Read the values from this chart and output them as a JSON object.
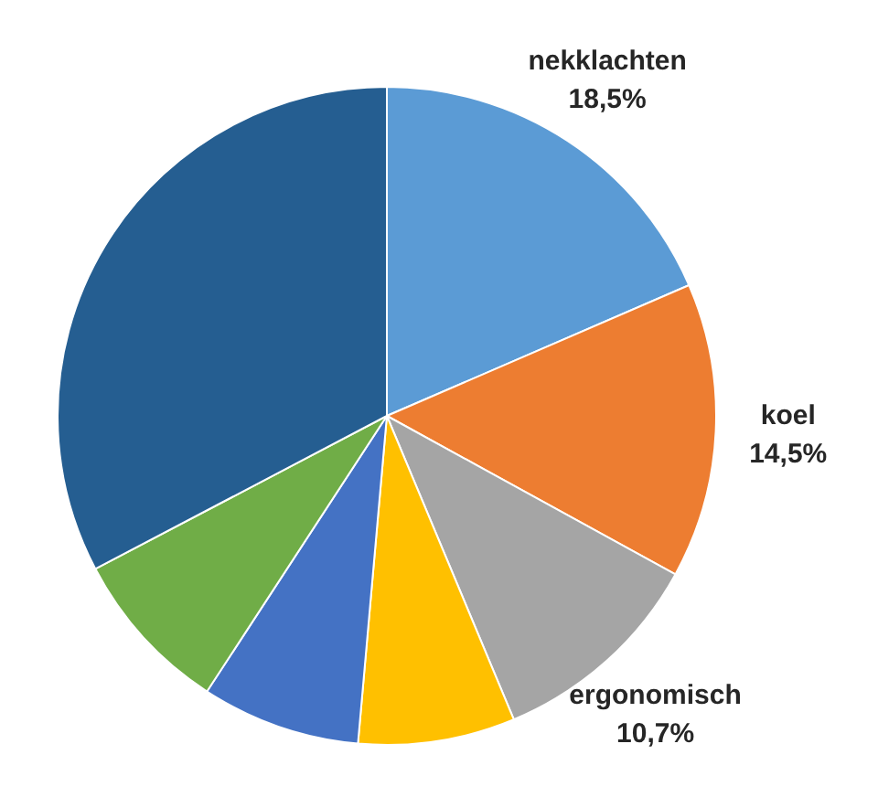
{
  "chart_data": {
    "type": "pie",
    "categories": [
      "nekklachten",
      "koel",
      "ergonomisch",
      null,
      null,
      null,
      null
    ],
    "values": [
      18.5,
      14.5,
      10.7,
      7.7,
      7.8,
      8.1,
      32.7
    ],
    "value_labels": [
      "18,5%",
      "14,5%",
      "10,7%",
      null,
      null,
      null,
      null
    ],
    "colors": [
      "#5b9bd5",
      "#ed7d31",
      "#a5a5a5",
      "#ffc000",
      "#4472c4",
      "#70ad47",
      "#255e91"
    ],
    "legend": false
  }
}
